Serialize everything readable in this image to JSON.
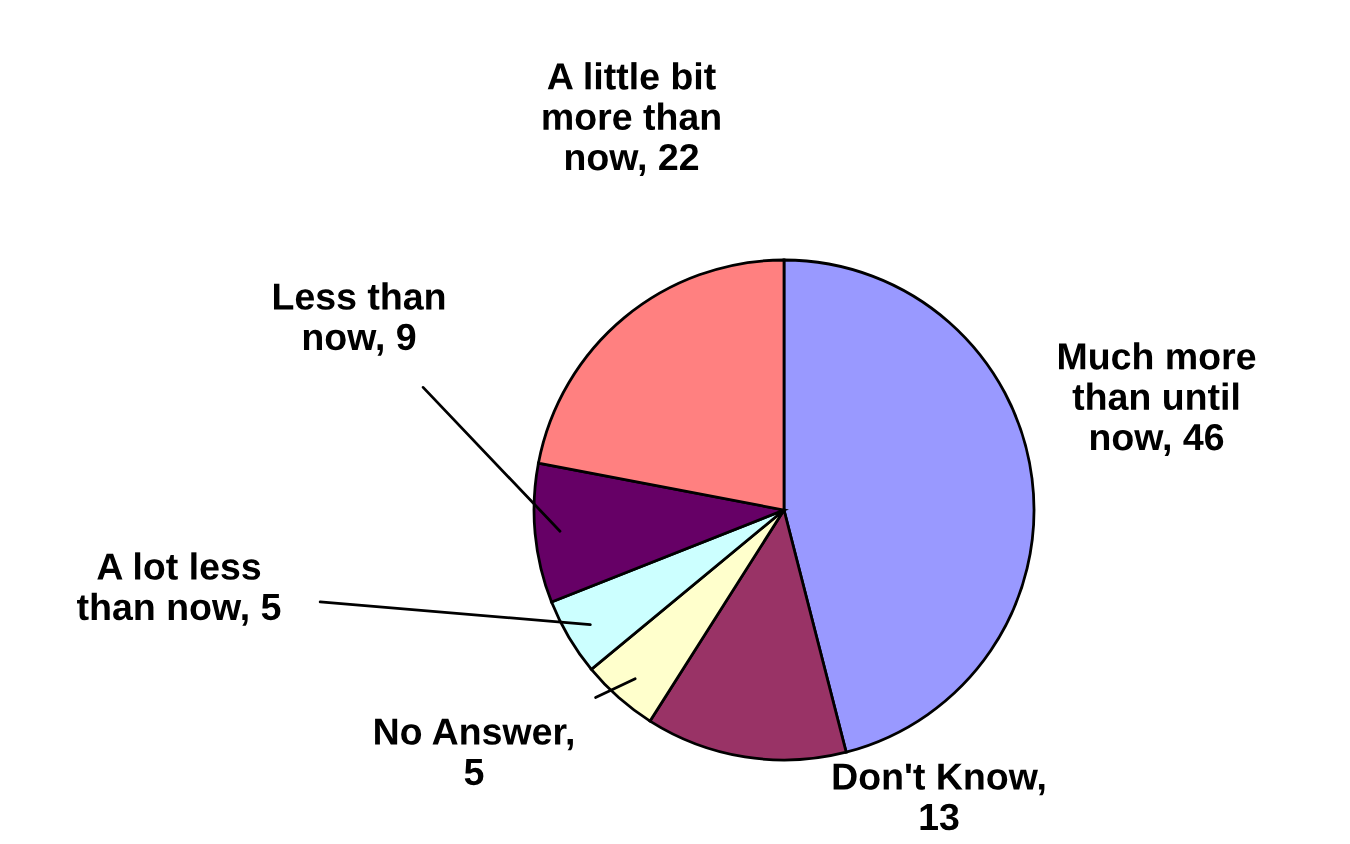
{
  "chart_data": {
    "type": "pie",
    "categories": [
      "Much more\nthan until\nnow, 46",
      "Don't Know,\n13",
      "No Answer,\n5",
      "A lot less\nthan now, 5",
      "Less than\nnow, 9",
      "A little bit\nmore than\nnow, 22"
    ],
    "values": [
      46,
      13,
      5,
      5,
      9,
      22
    ],
    "colors": [
      "#9999ff",
      "#993366",
      "#ffffcc",
      "#ccffff",
      "#660066",
      "#ff8080"
    ],
    "legend": false
  }
}
